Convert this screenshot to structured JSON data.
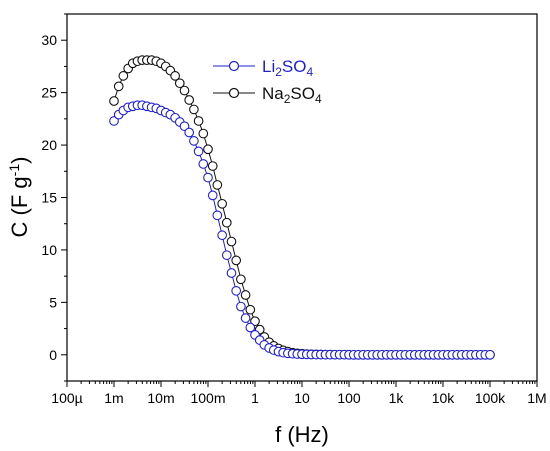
{
  "chart_data": {
    "type": "scatter",
    "xlabel": "f (Hz)",
    "ylabel_main": "C (F g",
    "ylabel_sup": "-1",
    "ylabel_close": ")",
    "xscale": "log",
    "xlim": [
      0.0001,
      1000000
    ],
    "ylim": [
      -2.5,
      32.5
    ],
    "x_ticks": [
      {
        "value": 0.0001,
        "label": "100µ"
      },
      {
        "value": 0.001,
        "label": "1m"
      },
      {
        "value": 0.01,
        "label": "10m"
      },
      {
        "value": 0.1,
        "label": "100m"
      },
      {
        "value": 1,
        "label": "1"
      },
      {
        "value": 10,
        "label": "10"
      },
      {
        "value": 100,
        "label": "100"
      },
      {
        "value": 1000,
        "label": "1k"
      },
      {
        "value": 10000,
        "label": "10k"
      },
      {
        "value": 100000,
        "label": "100k"
      },
      {
        "value": 1000000,
        "label": "1M"
      }
    ],
    "y_ticks": [
      0,
      5,
      10,
      15,
      20,
      25,
      30
    ],
    "legend_placement": "top-center",
    "marker": "open-circle",
    "x": [
      0.001,
      0.00126,
      0.00158,
      0.002,
      0.00251,
      0.00316,
      0.00398,
      0.00501,
      0.00631,
      0.00794,
      0.01,
      0.0126,
      0.0158,
      0.02,
      0.0251,
      0.0316,
      0.0398,
      0.0501,
      0.0631,
      0.0794,
      0.1,
      0.126,
      0.158,
      0.2,
      0.251,
      0.316,
      0.398,
      0.501,
      0.631,
      0.794,
      1,
      1.26,
      1.58,
      2,
      2.51,
      3.16,
      3.98,
      5.01,
      6.31,
      7.94,
      10,
      12.6,
      15.8,
      20,
      25.1,
      31.6,
      39.8,
      50.1,
      63.1,
      79.4,
      100,
      126,
      158,
      200,
      251,
      316,
      398,
      501,
      631,
      794,
      1000,
      1260,
      1580,
      2000,
      2510,
      3160,
      3980,
      5010,
      6310,
      7940,
      10000,
      12600,
      15800,
      20000,
      25100,
      31600,
      39800,
      50100,
      63100,
      79400,
      100000
    ],
    "series": [
      {
        "name_base": "Li",
        "name_sub1": "2",
        "name_mid": "SO",
        "name_sub2": "4",
        "color": "#1f1fd6",
        "values": [
          22.3,
          22.9,
          23.3,
          23.6,
          23.7,
          23.8,
          23.8,
          23.7,
          23.6,
          23.5,
          23.3,
          23.1,
          22.9,
          22.6,
          22.2,
          21.8,
          21.2,
          20.4,
          19.4,
          18.2,
          16.9,
          15.2,
          13.3,
          11.4,
          9.5,
          7.8,
          6.1,
          4.6,
          3.5,
          2.6,
          1.9,
          1.4,
          0.95,
          0.65,
          0.45,
          0.3,
          0.2,
          0.14,
          0.1,
          0.07,
          0.05,
          0.04,
          0.03,
          0.02,
          0.02,
          0.01,
          0.01,
          0.01,
          0.01,
          0.01,
          0,
          0,
          0,
          0,
          0,
          0,
          0,
          0,
          0,
          0,
          0,
          0,
          0,
          0,
          0,
          0,
          0,
          0,
          0,
          0,
          0,
          0,
          0,
          0,
          0,
          0,
          0,
          0,
          0,
          0,
          0
        ]
      },
      {
        "name_base": "Na",
        "name_sub1": "2",
        "name_mid": "SO",
        "name_sub2": "4",
        "color": "#111111",
        "values": [
          24.2,
          25.6,
          26.6,
          27.3,
          27.8,
          28.0,
          28.1,
          28.1,
          28.1,
          28.0,
          27.8,
          27.5,
          27.1,
          26.6,
          25.9,
          25.2,
          24.3,
          23.4,
          22.3,
          21.1,
          19.6,
          18.0,
          16.2,
          14.4,
          12.6,
          10.8,
          9.0,
          7.2,
          5.7,
          4.3,
          3.2,
          2.4,
          1.7,
          1.2,
          0.85,
          0.6,
          0.42,
          0.3,
          0.2,
          0.14,
          0.1,
          0.07,
          0.05,
          0.04,
          0.03,
          0.02,
          0.02,
          0.01,
          0.01,
          0.01,
          0.01,
          0,
          0,
          0,
          0,
          0,
          0,
          0,
          0,
          0,
          0,
          0,
          0,
          0,
          0,
          0,
          0,
          0,
          0,
          0,
          0,
          0,
          0,
          0,
          0,
          0,
          0,
          0,
          0,
          0,
          0
        ]
      }
    ]
  }
}
